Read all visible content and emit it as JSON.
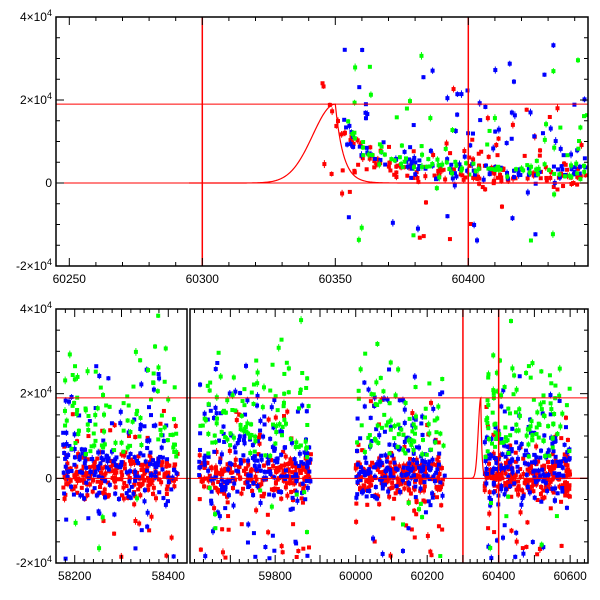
{
  "colors": {
    "red": "#ff0000",
    "green": "#00ff00",
    "blue": "#0000ff",
    "axis": "#000000"
  },
  "chart_data": [
    {
      "type": "scatter",
      "panel": "top",
      "xlim": [
        60245,
        60445
      ],
      "ylim": [
        -20000,
        40000
      ],
      "x_ticks": [
        60250,
        60300,
        60350,
        60400
      ],
      "x_tick_labels": [
        "60250",
        "60300",
        "60350",
        "60400"
      ],
      "y_ticks": [
        -20000,
        0,
        20000,
        40000
      ],
      "y_tick_labels": [
        {
          "mant": "-2×10",
          "exp": "4"
        },
        {
          "mant": "0",
          "exp": ""
        },
        {
          "mant": "2×10",
          "exp": "4"
        },
        {
          "mant": "4×10",
          "exp": "4"
        }
      ],
      "hlines": [
        0,
        19000
      ],
      "vlines": [
        60300,
        60400
      ],
      "model_curve": {
        "peak_x": 60350,
        "peak_y": 19000,
        "rise_width": 12,
        "decay_tau": 3
      },
      "series": [
        {
          "color": "red",
          "x_start": 60345,
          "x_end": 60445,
          "baseline": 1500,
          "count": 170
        },
        {
          "color": "blue",
          "x_start": 60352,
          "x_end": 60445,
          "baseline": 2500,
          "count": 150
        },
        {
          "color": "green",
          "x_start": 60352,
          "x_end": 60445,
          "baseline": 3000,
          "count": 110
        }
      ]
    },
    {
      "type": "scatter",
      "panel": "bottom",
      "segments": [
        {
          "xlim": [
            58160,
            58440
          ],
          "x_ticks": [
            58200,
            58300,
            58400
          ],
          "x_tick_labels": [
            "58200",
            "",
            "58400"
          ]
        },
        {
          "xlim": [
            59610,
            59900
          ],
          "x_ticks": [
            59800
          ],
          "x_tick_labels": [
            "59800"
          ]
        },
        {
          "xlim": [
            59900,
            60650
          ],
          "x_ticks": [
            60000,
            60100,
            60200,
            60300,
            60400,
            60500,
            60600
          ],
          "x_tick_labels": [
            "60000",
            "",
            "60200",
            "",
            "60400",
            "",
            "60600"
          ]
        }
      ],
      "ylim": [
        -20000,
        40000
      ],
      "y_ticks": [
        -20000,
        0,
        20000,
        40000
      ],
      "y_tick_labels": [
        {
          "mant": "-2×10",
          "exp": "4"
        },
        {
          "mant": "0",
          "exp": ""
        },
        {
          "mant": "2×10",
          "exp": "4"
        },
        {
          "mant": "4×10",
          "exp": "4"
        }
      ],
      "hlines": [
        0,
        19000
      ],
      "vlines": [
        60300,
        60400
      ],
      "model_curve": {
        "peak_x": 60350,
        "peak_y": 19000,
        "rise_width": 10,
        "decay_tau": 3
      },
      "series": [
        {
          "color": "red",
          "clusters": [
            [
              58175,
              58420
            ],
            [
              59630,
              59880
            ],
            [
              60000,
              60250
            ],
            [
              60360,
              60600
            ]
          ],
          "count": 900
        },
        {
          "color": "blue",
          "clusters": [
            [
              58175,
              58420
            ],
            [
              59630,
              59880
            ],
            [
              60000,
              60250
            ],
            [
              60360,
              60600
            ]
          ],
          "count": 700
        },
        {
          "color": "green",
          "clusters": [
            [
              58175,
              58420
            ],
            [
              59630,
              59880
            ],
            [
              60000,
              60250
            ],
            [
              60360,
              60600
            ]
          ],
          "count": 400
        }
      ]
    }
  ]
}
